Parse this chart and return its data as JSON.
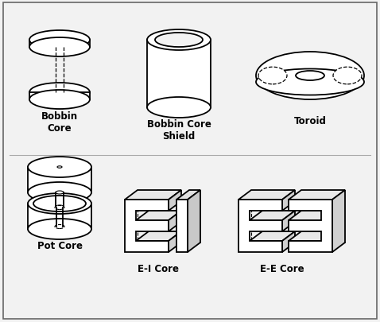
{
  "background_color": "#f2f2f2",
  "border_color": "#666666",
  "line_color": "#000000",
  "line_width": 1.3,
  "labels": {
    "bobbin_core": "Bobbin\nCore",
    "bobbin_core_shield": "Bobbin Core\nShield",
    "toroid": "Toroid",
    "pot_core": "Pot Core",
    "ei_core": "E-I Core",
    "ee_core": "E-E Core"
  },
  "label_fontsize": 8.5,
  "figsize": [
    4.78,
    4.06
  ],
  "dpi": 100
}
